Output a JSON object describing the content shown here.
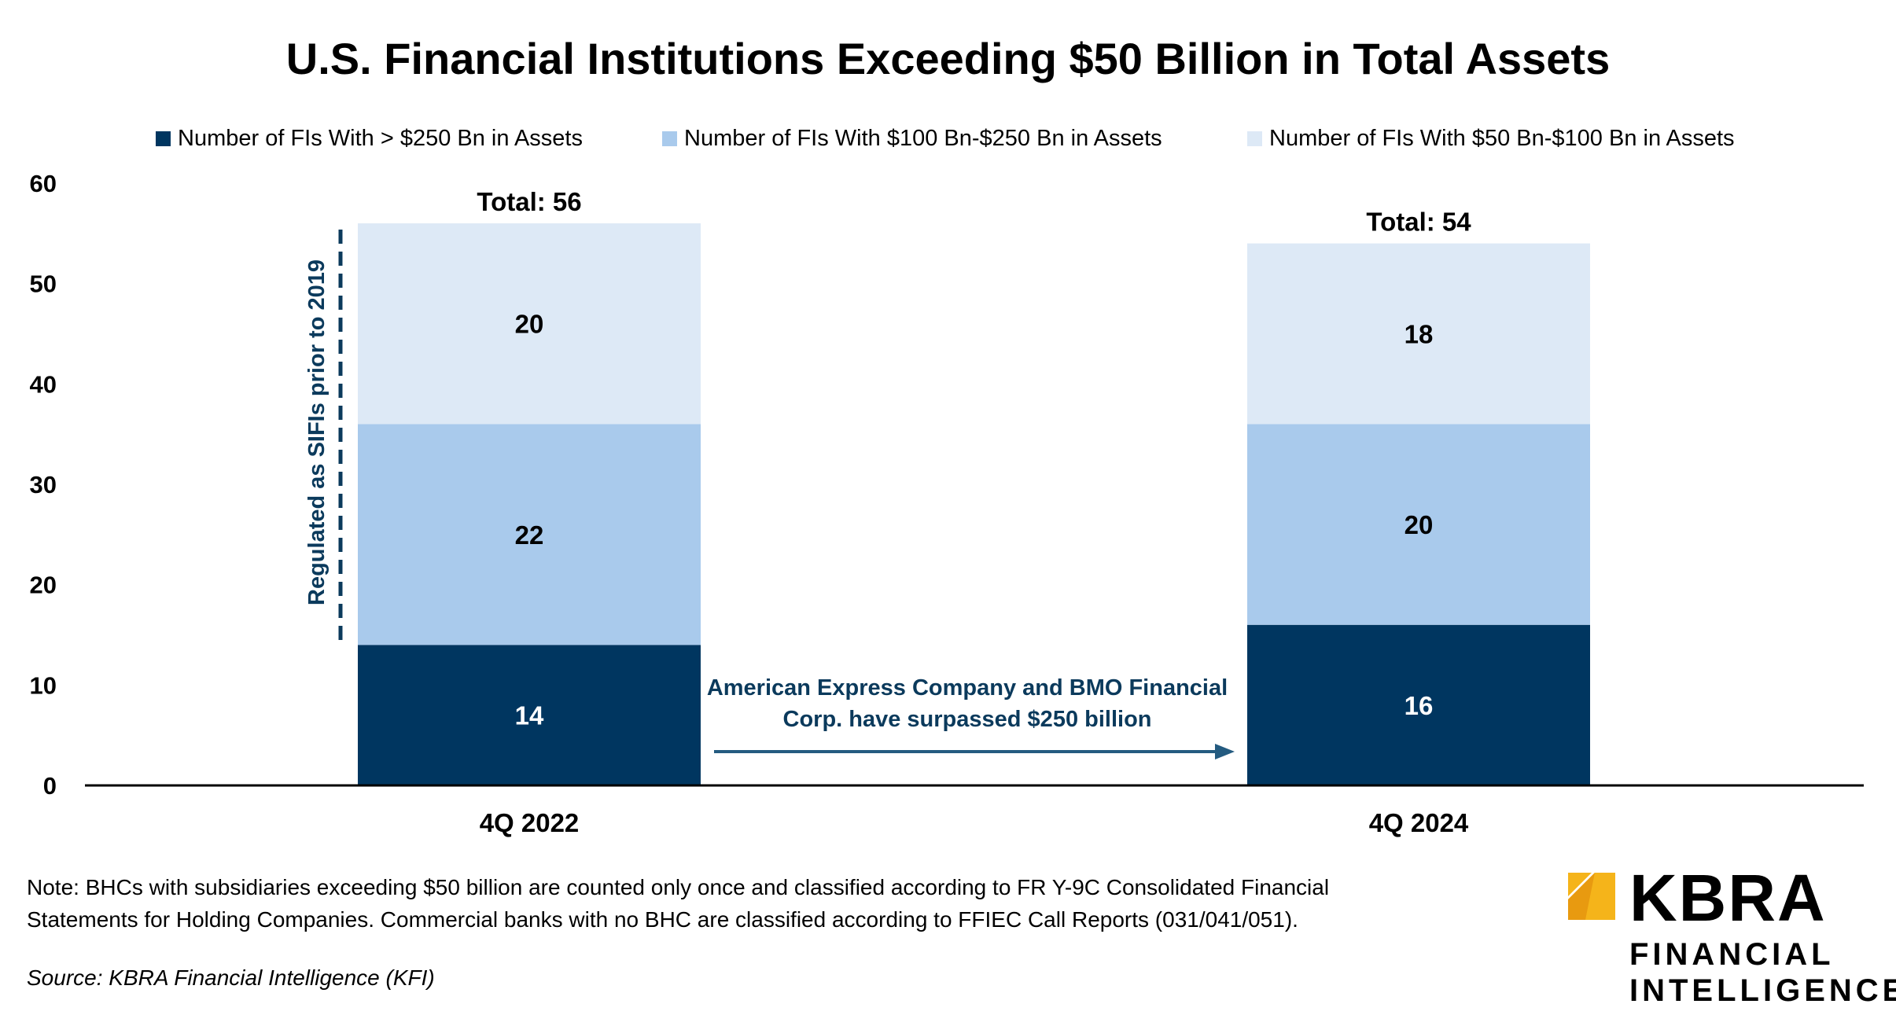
{
  "chart_data": {
    "type": "bar",
    "stacked": true,
    "title": "U.S. Financial Institutions Exceeding $50 Billion in Total Assets",
    "categories": [
      "4Q 2022",
      "4Q 2024"
    ],
    "series": [
      {
        "name": "Number of FIs With > $250 Bn in Assets",
        "values": [
          14,
          16
        ],
        "color": "#003660",
        "label_color": "#ffffff"
      },
      {
        "name": "Number of FIs With $100 Bn-$250 Bn in Assets",
        "values": [
          22,
          20
        ],
        "color": "#a9caec",
        "label_color": "#000000"
      },
      {
        "name": "Number of FIs With $50 Bn-$100 Bn in Assets",
        "values": [
          20,
          18
        ],
        "color": "#dde9f6",
        "label_color": "#000000"
      }
    ],
    "totals": [
      "Total: 56",
      "Total: 54"
    ],
    "ylim": [
      0,
      60
    ],
    "yticks": [
      0,
      10,
      20,
      30,
      40,
      50,
      60
    ],
    "xlabel": "",
    "ylabel": "",
    "grid": false,
    "legend_position": "top",
    "annotations": {
      "bracket_label": "Regulated as SIFIs prior to 2019",
      "arrow_text": "American Express Company and BMO Financial Corp. have surpassed $250 billion",
      "accent_color": "#0b3a5c"
    }
  },
  "note": "Note: BHCs with subsidiaries exceeding $50 billion are counted only once and classified according to FR Y-9C Consolidated Financial Statements for Holding Companies. Commercial banks with no BHC are classified according to FFIEC Call Reports (031/041/051).",
  "source": "Source: KBRA Financial Intelligence (KFI)",
  "logo": {
    "wordmark": "KBRA",
    "line1": "FINANCIAL",
    "line2": "INTELLIGENCE",
    "mark_color": "#f5b41a"
  }
}
